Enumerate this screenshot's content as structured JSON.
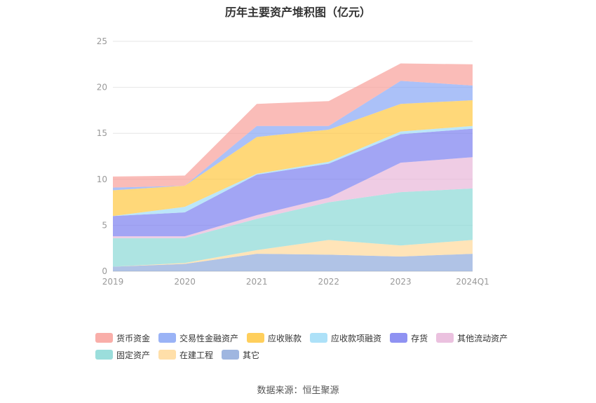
{
  "chart_data": {
    "type": "area",
    "stacked": true,
    "title": "历年主要资产堆积图（亿元）",
    "categories": [
      "2019",
      "2020",
      "2021",
      "2022",
      "2023",
      "2024Q1"
    ],
    "ylim": [
      0,
      25
    ],
    "yticks": [
      0,
      5,
      10,
      15,
      20,
      25
    ],
    "grid": true,
    "legend_position": "bottom",
    "series": [
      {
        "name": "其它",
        "color": "#8ea9db",
        "values": [
          0.5,
          0.8,
          1.9,
          1.8,
          1.6,
          1.9
        ]
      },
      {
        "name": "在建工程",
        "color": "#ffd99a",
        "values": [
          0.0,
          0.1,
          0.4,
          1.6,
          1.2,
          1.5
        ]
      },
      {
        "name": "固定资产",
        "color": "#8ad8d6",
        "values": [
          3.1,
          2.7,
          3.4,
          4.1,
          5.8,
          5.6
        ]
      },
      {
        "name": "其他流动资产",
        "color": "#e8b6d9",
        "values": [
          0.2,
          0.2,
          0.4,
          0.5,
          3.2,
          3.4
        ]
      },
      {
        "name": "存货",
        "color": "#7b7ff0",
        "values": [
          2.2,
          2.6,
          4.4,
          3.7,
          3.1,
          3.1
        ]
      },
      {
        "name": "应收款项融资",
        "color": "#9fdcf7",
        "values": [
          0.0,
          0.6,
          0.1,
          0.2,
          0.3,
          0.3
        ]
      },
      {
        "name": "应收账款",
        "color": "#ffc740",
        "values": [
          2.8,
          2.3,
          4.0,
          3.5,
          3.0,
          2.8
        ]
      },
      {
        "name": "交易性金融资产",
        "color": "#88a6f5",
        "values": [
          0.3,
          0.0,
          1.2,
          0.4,
          2.5,
          1.6
        ]
      },
      {
        "name": "货币资金",
        "color": "#f8a09a",
        "values": [
          1.2,
          1.1,
          2.4,
          2.7,
          1.9,
          2.3
        ]
      }
    ],
    "legend_order": [
      "货币资金",
      "交易性金融资产",
      "应收账款",
      "应收款项融资",
      "存货",
      "其他流动资产",
      "固定资产",
      "在建工程",
      "其它"
    ]
  },
  "source": "数据来源：恒生聚源"
}
